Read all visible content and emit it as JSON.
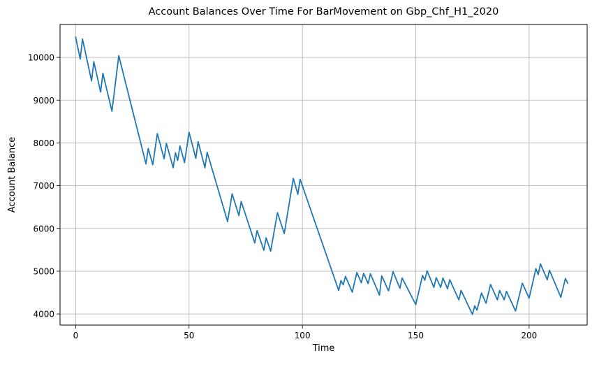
{
  "chart_data": {
    "type": "line",
    "title": "Account Balances Over Time For BarMovement on Gbp_Chf_H1_2020",
    "xlabel": "Time",
    "ylabel": "Account Balance",
    "xlim": [
      -6.9,
      225.6
    ],
    "ylim": [
      3740,
      10770
    ],
    "xticks": [
      0,
      50,
      100,
      150,
      200
    ],
    "yticks": [
      4000,
      5000,
      6000,
      7000,
      8000,
      9000,
      10000
    ],
    "grid": true,
    "line_color": "#1f77b4",
    "series": [
      {
        "points": [
          [
            0,
            10470
          ],
          [
            2,
            9960
          ],
          [
            3,
            10430
          ],
          [
            7,
            9450
          ],
          [
            8,
            9900
          ],
          [
            11,
            9190
          ],
          [
            12,
            9630
          ],
          [
            16,
            8740
          ],
          [
            19,
            10040
          ],
          [
            31,
            7510
          ],
          [
            32,
            7870
          ],
          [
            34,
            7490
          ],
          [
            36,
            8220
          ],
          [
            39,
            7630
          ],
          [
            40,
            7990
          ],
          [
            43,
            7420
          ],
          [
            44,
            7770
          ],
          [
            45,
            7590
          ],
          [
            46,
            7930
          ],
          [
            48,
            7540
          ],
          [
            50,
            8250
          ],
          [
            53,
            7640
          ],
          [
            54,
            8030
          ],
          [
            57,
            7420
          ],
          [
            58,
            7780
          ],
          [
            67,
            6160
          ],
          [
            69,
            6810
          ],
          [
            72,
            6300
          ],
          [
            73,
            6630
          ],
          [
            79,
            5660
          ],
          [
            80,
            5950
          ],
          [
            83,
            5490
          ],
          [
            84,
            5780
          ],
          [
            86,
            5470
          ],
          [
            89,
            6370
          ],
          [
            92,
            5880
          ],
          [
            96,
            7170
          ],
          [
            98,
            6800
          ],
          [
            99,
            7150
          ],
          [
            116,
            4550
          ],
          [
            117,
            4780
          ],
          [
            118,
            4680
          ],
          [
            119,
            4880
          ],
          [
            122,
            4510
          ],
          [
            124,
            4970
          ],
          [
            126,
            4730
          ],
          [
            127,
            4950
          ],
          [
            129,
            4710
          ],
          [
            130,
            4940
          ],
          [
            134,
            4440
          ],
          [
            135,
            4890
          ],
          [
            138,
            4540
          ],
          [
            140,
            4990
          ],
          [
            143,
            4600
          ],
          [
            144,
            4840
          ],
          [
            150,
            4220
          ],
          [
            153,
            4900
          ],
          [
            154,
            4790
          ],
          [
            155,
            5010
          ],
          [
            158,
            4620
          ],
          [
            159,
            4850
          ],
          [
            161,
            4620
          ],
          [
            162,
            4840
          ],
          [
            164,
            4590
          ],
          [
            165,
            4800
          ],
          [
            169,
            4330
          ],
          [
            170,
            4550
          ],
          [
            175,
            3990
          ],
          [
            176,
            4190
          ],
          [
            177,
            4090
          ],
          [
            179,
            4490
          ],
          [
            181,
            4250
          ],
          [
            183,
            4690
          ],
          [
            186,
            4330
          ],
          [
            187,
            4550
          ],
          [
            189,
            4330
          ],
          [
            190,
            4530
          ],
          [
            194,
            4070
          ],
          [
            197,
            4720
          ],
          [
            200,
            4370
          ],
          [
            203,
            5060
          ],
          [
            204,
            4920
          ],
          [
            205,
            5170
          ],
          [
            208,
            4800
          ],
          [
            209,
            5020
          ],
          [
            214,
            4390
          ],
          [
            216,
            4830
          ],
          [
            217,
            4720
          ]
        ]
      }
    ]
  }
}
